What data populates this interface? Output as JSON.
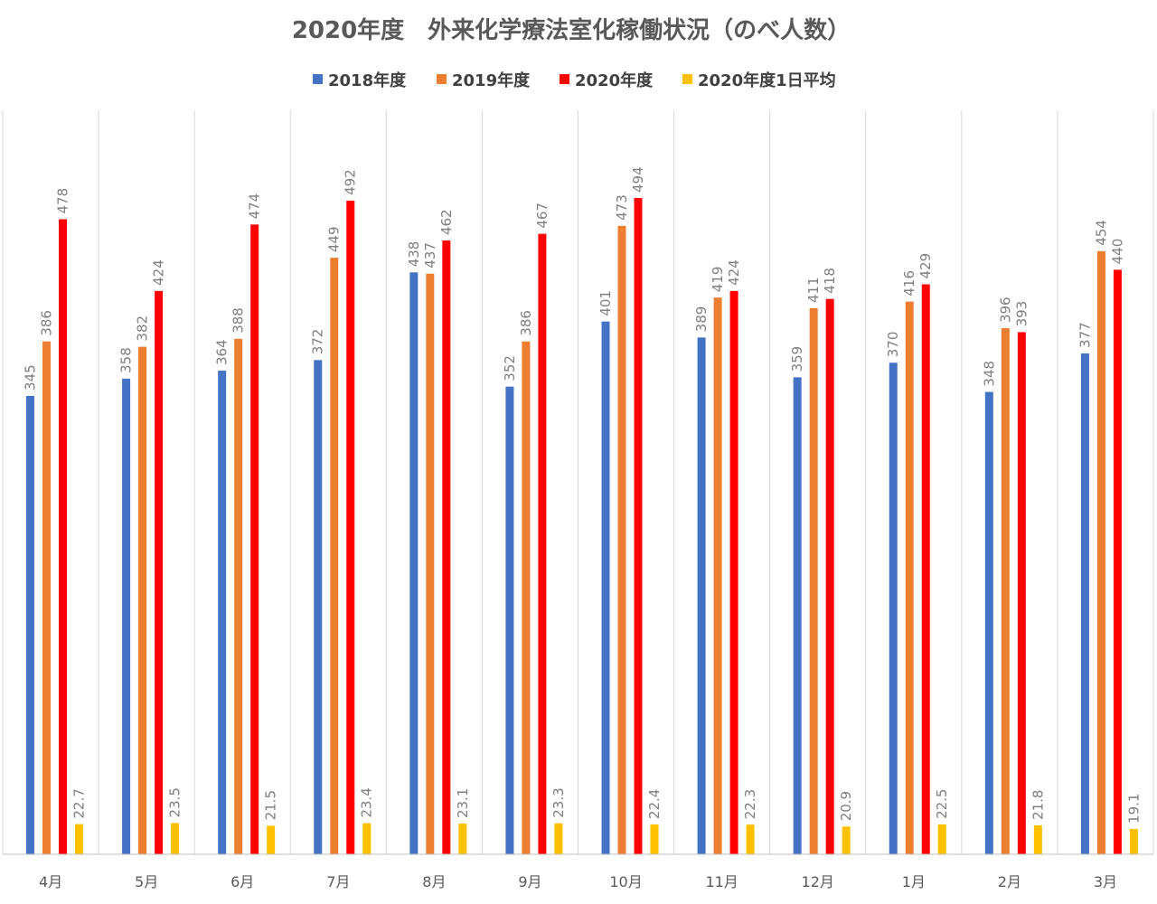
{
  "chart_data": {
    "type": "bar",
    "title": "2020年度　外来化学療法室化稼働状況（のべ人数）",
    "xlabel": "",
    "ylabel": "",
    "ylim": [
      0,
      560
    ],
    "grid": "vertical category separators",
    "legend_position": "top",
    "categories": [
      "4月",
      "5月",
      "6月",
      "7月",
      "8月",
      "9月",
      "10月",
      "11月",
      "12月",
      "1月",
      "2月",
      "3月"
    ],
    "series": [
      {
        "name": "2018年度",
        "color": "#4472c4",
        "values": [
          345,
          358,
          364,
          372,
          438,
          352,
          401,
          389,
          359,
          370,
          348,
          377
        ],
        "labels": [
          "345",
          "358",
          "364",
          "372",
          "438",
          "352",
          "401",
          "389",
          "359",
          "370",
          "348",
          "377"
        ]
      },
      {
        "name": "2019年度",
        "color": "#ed7d31",
        "values": [
          386,
          382,
          388,
          449,
          437,
          386,
          473,
          419,
          411,
          416,
          396,
          454
        ],
        "labels": [
          "386",
          "382",
          "388",
          "449",
          "437",
          "386",
          "473",
          "419",
          "411",
          "416",
          "396",
          "454"
        ]
      },
      {
        "name": "2020年度",
        "color": "#ff0000",
        "values": [
          478,
          424,
          474,
          492,
          462,
          467,
          494,
          424,
          418,
          429,
          393,
          440
        ],
        "labels": [
          "478",
          "424",
          "474",
          "492",
          "462",
          "467",
          "494",
          "424",
          "418",
          "429",
          "393",
          "440"
        ]
      },
      {
        "name": "2020年度1日平均",
        "color": "#ffc000",
        "values": [
          22.7,
          23.5,
          21.5,
          23.4,
          23.1,
          23.3,
          22.4,
          22.3,
          20.9,
          22.5,
          21.8,
          19.1
        ],
        "labels": [
          "22.7",
          "23.5",
          "21.5",
          "23.4",
          "23.1",
          "23.3",
          "22.4",
          "22.3",
          "20.9",
          "22.5",
          "21.8",
          "19.1"
        ]
      }
    ]
  }
}
